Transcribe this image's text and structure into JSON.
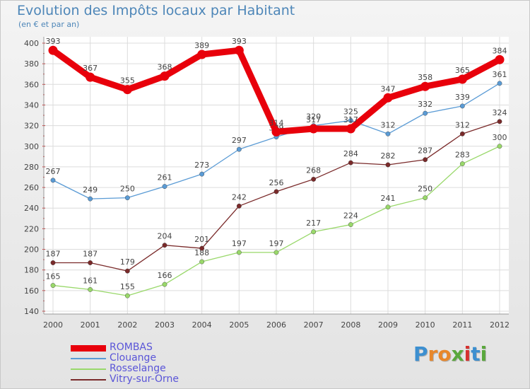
{
  "page": {
    "title": "Evolution des Impôts locaux par Habitant",
    "subtitle": "(en € et par an)"
  },
  "logo": {
    "text": "Proxiti",
    "letters": [
      {
        "ch": "P",
        "color": "#3c8fd0"
      },
      {
        "ch": "r",
        "color": "#e8872a"
      },
      {
        "ch": "o",
        "color": "#e8872a"
      },
      {
        "ch": "x",
        "color": "#5aa83c"
      },
      {
        "ch": "i",
        "color": "#d6312f"
      },
      {
        "ch": "t",
        "color": "#3c8fd0"
      },
      {
        "ch": "i",
        "color": "#5aa83c"
      }
    ]
  },
  "chart_data": {
    "type": "line",
    "title": "Evolution des Impôts locaux par Habitant",
    "subtitle": "(en € et par an)",
    "x": [
      "2000",
      "2001",
      "2002",
      "2003",
      "2004",
      "2005",
      "2006",
      "2007",
      "2008",
      "2009",
      "2010",
      "2011",
      "2012"
    ],
    "ylim": [
      140,
      400
    ],
    "yticks": [
      140,
      160,
      180,
      200,
      220,
      240,
      260,
      280,
      300,
      320,
      340,
      360,
      380,
      400
    ],
    "grid": true,
    "legend": "bottom-left",
    "series": [
      {
        "name": "ROMBAS",
        "color": "#e8000b",
        "emphasis": true,
        "values": [
          393,
          367,
          355,
          368,
          389,
          393,
          314,
          317,
          317,
          347,
          358,
          365,
          384
        ]
      },
      {
        "name": "Clouange",
        "color": "#5a9bd5",
        "emphasis": false,
        "values": [
          267,
          249,
          250,
          261,
          273,
          297,
          309,
          320,
          325,
          312,
          332,
          339,
          361
        ]
      },
      {
        "name": "Rosselange",
        "color": "#99d86a",
        "emphasis": false,
        "values": [
          165,
          161,
          155,
          166,
          188,
          197,
          197,
          217,
          224,
          241,
          250,
          283,
          300
        ]
      },
      {
        "name": "Vitry-sur-Orne",
        "color": "#7a2a2a",
        "emphasis": false,
        "values": [
          187,
          187,
          179,
          204,
          201,
          242,
          256,
          268,
          284,
          282,
          287,
          312,
          324
        ]
      }
    ]
  }
}
